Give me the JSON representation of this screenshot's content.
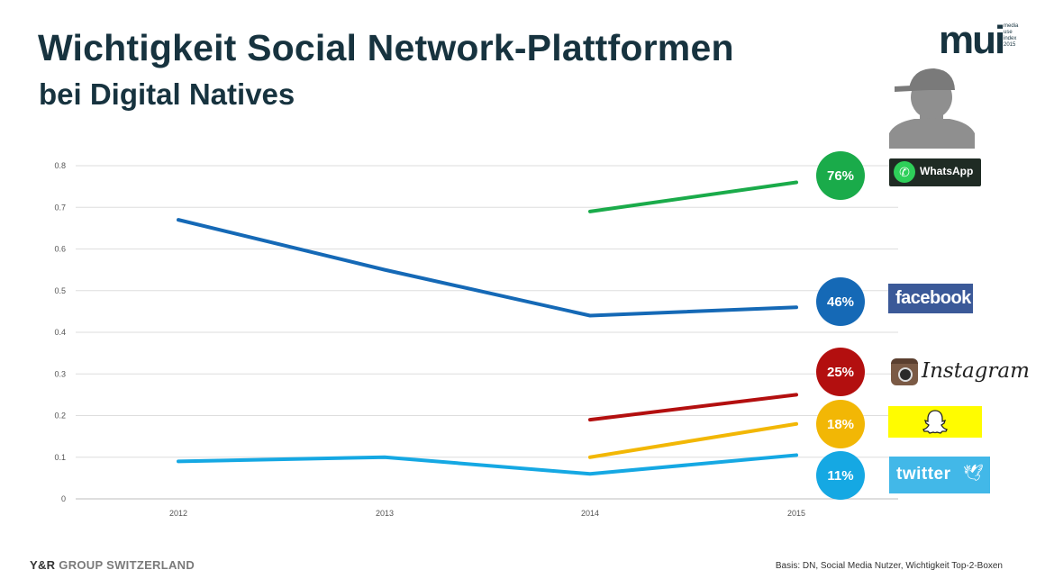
{
  "header": {
    "title": "Wichtigkeit Social Network-Plattformen",
    "subtitle": "bei Digital Natives"
  },
  "logo": {
    "word": "mui",
    "small_lines": [
      "media",
      "use",
      "index",
      "2015"
    ]
  },
  "footer": {
    "left_bold": "Y&R",
    "left_rest": "GROUP SWITZERLAND",
    "right": "Basis: DN, Social Media Nutzer, Wichtigkeit Top-2-Boxen"
  },
  "brands": {
    "whatsapp": "WhatsApp",
    "facebook": "facebook",
    "instagram": "Instagram",
    "snapchat": "snapchat-ghost-icon",
    "twitter": "twitter"
  },
  "chart_data": {
    "type": "line",
    "x": [
      "2012",
      "2013",
      "2014",
      "2015"
    ],
    "ylim": [
      0,
      0.8
    ],
    "yticks": [
      "0",
      "0.1",
      "0.2",
      "0.3",
      "0.4",
      "0.5",
      "0.6",
      "0.7",
      "0.8"
    ],
    "grid": true,
    "series": [
      {
        "name": "WhatsApp",
        "color": "#1aab4a",
        "values": [
          null,
          null,
          0.69,
          0.76
        ],
        "label": "76%"
      },
      {
        "name": "facebook",
        "color": "#1569b6",
        "values": [
          0.67,
          0.55,
          0.44,
          0.46
        ],
        "label": "46%"
      },
      {
        "name": "Instagram",
        "color": "#b30f0f",
        "values": [
          null,
          null,
          0.19,
          0.25
        ],
        "label": "25%"
      },
      {
        "name": "Snapchat",
        "color": "#f2b705",
        "values": [
          null,
          null,
          0.1,
          0.18
        ],
        "label": "18%"
      },
      {
        "name": "twitter",
        "color": "#15a8e3",
        "values": [
          0.09,
          0.1,
          0.06,
          0.105
        ],
        "label": "11%"
      }
    ]
  }
}
